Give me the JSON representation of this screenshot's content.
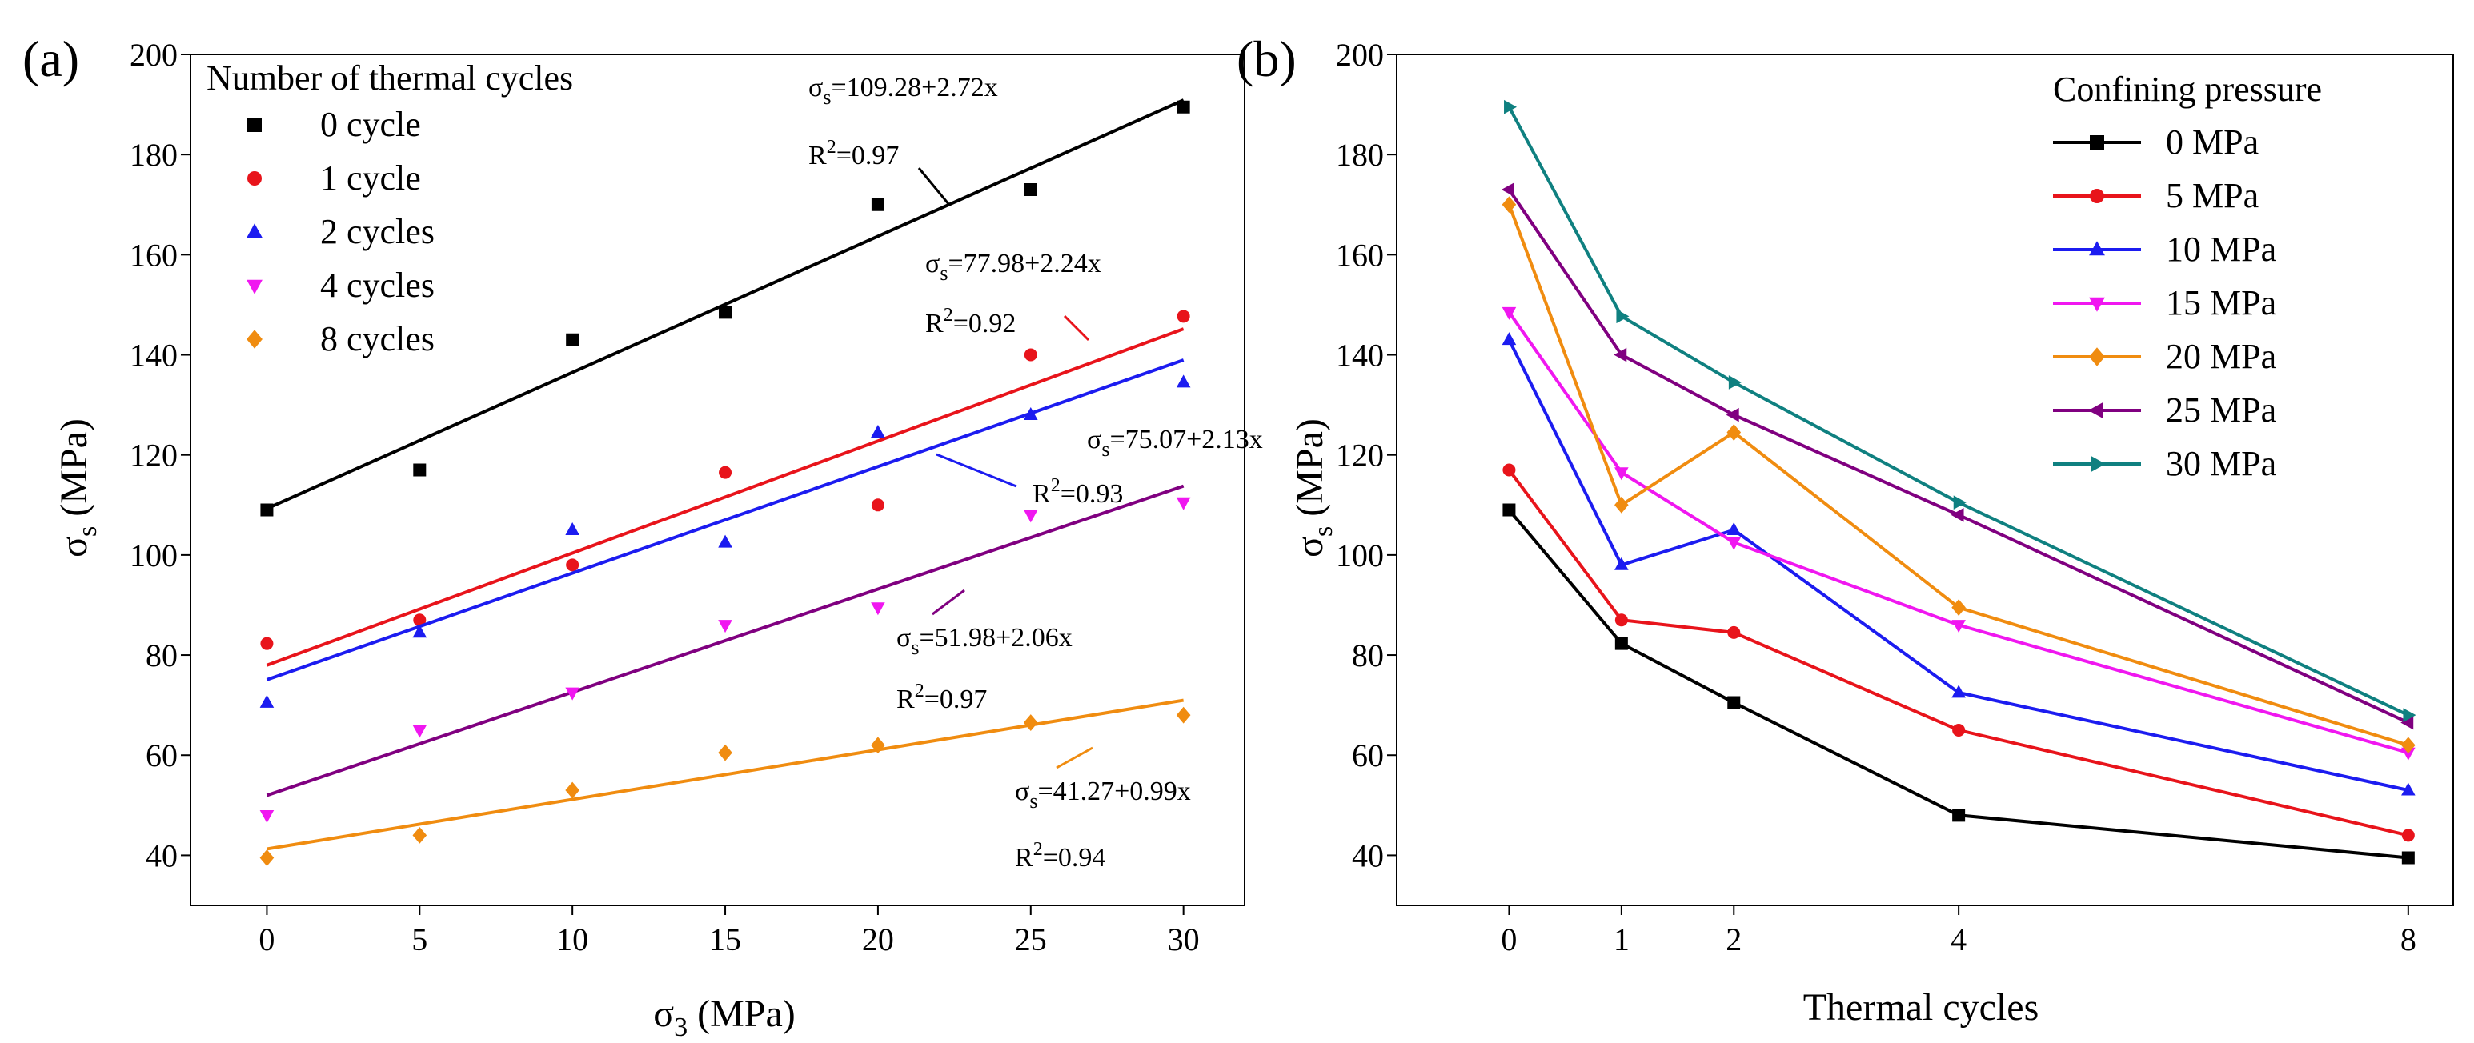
{
  "chart_data": [
    {
      "panel_label": "(a)",
      "type": "scatter",
      "xlabel_main": "σ",
      "xlabel_sub": "3",
      "xlabel_unit": " (MPa)",
      "ylabel_main": "σ",
      "ylabel_sub": "s",
      "ylabel_unit": " (MPa)",
      "xlim": [
        -2.5,
        32
      ],
      "ylim": [
        30,
        200
      ],
      "xticks": [
        0,
        5,
        10,
        15,
        20,
        25,
        30
      ],
      "yticks": [
        40,
        60,
        80,
        100,
        120,
        140,
        160,
        180,
        200
      ],
      "legend_title": "Number of thermal cycles",
      "legend_position": "top-left",
      "series": [
        {
          "name": "0 cycle",
          "color": "#000000",
          "marker": "square",
          "x": [
            0,
            5,
            10,
            15,
            20,
            25,
            30
          ],
          "values": [
            109,
            117,
            143,
            148.5,
            170,
            173,
            189.5
          ],
          "fit": {
            "intercept": 109.28,
            "slope": 2.72
          },
          "equation_prefix": "σ",
          "equation_sub": "s",
          "equation_rest": "=109.28+2.72x",
          "r2_prefix": "R",
          "r2_sup": "2",
          "r2_rest": "=0.97"
        },
        {
          "name": "1 cycle",
          "color": "#e8141b",
          "marker": "circle",
          "x": [
            0,
            5,
            10,
            15,
            20,
            25,
            30
          ],
          "values": [
            82.3,
            87,
            98,
            116.5,
            110,
            140,
            147.7
          ],
          "fit": {
            "intercept": 77.98,
            "slope": 2.24
          },
          "equation_prefix": "σ",
          "equation_sub": "s",
          "equation_rest": "=77.98+2.24x",
          "r2_prefix": "R",
          "r2_sup": "2",
          "r2_rest": "=0.92"
        },
        {
          "name": "2 cycles",
          "color": "#1c1cf0",
          "marker": "triangle-up",
          "x": [
            0,
            5,
            10,
            15,
            20,
            25,
            30
          ],
          "values": [
            70.5,
            84.5,
            105,
            102.5,
            124.5,
            128,
            134.5
          ],
          "fit": {
            "intercept": 75.07,
            "slope": 2.13
          },
          "equation_prefix": "σ",
          "equation_sub": "s",
          "equation_rest": "=75.07+2.13x",
          "r2_prefix": "R",
          "r2_sup": "2",
          "r2_rest": "=0.93"
        },
        {
          "name": "4 cycles",
          "color": "#f017f0",
          "marker": "triangle-down",
          "x": [
            0,
            5,
            10,
            15,
            20,
            25,
            30
          ],
          "values": [
            48,
            65,
            72.5,
            86,
            89.5,
            108,
            110.5
          ],
          "fit": {
            "intercept": 51.98,
            "slope": 2.06
          },
          "equation_prefix": "σ",
          "equation_sub": "s",
          "equation_rest": "=51.98+2.06x",
          "r2_prefix": "R",
          "r2_sup": "2",
          "r2_rest": "=0.97"
        },
        {
          "name": "8 cycles",
          "color": "#f08c10",
          "marker": "diamond",
          "x": [
            0,
            5,
            10,
            15,
            20,
            25,
            30
          ],
          "values": [
            39.5,
            44,
            53,
            60.5,
            62,
            66.5,
            68
          ],
          "fit": {
            "intercept": 41.27,
            "slope": 0.99
          },
          "equation_prefix": "σ",
          "equation_sub": "s",
          "equation_rest": "=41.27+0.99x",
          "r2_prefix": "R",
          "r2_sup": "2",
          "r2_rest": "=0.94"
        }
      ],
      "fit_line_colors": [
        "#000000",
        "#e8141b",
        "#1c1cf0",
        "#800080",
        "#f08c10"
      ]
    },
    {
      "panel_label": "(b)",
      "type": "line",
      "xlabel": "Thermal cycles",
      "ylabel_main": "σ",
      "ylabel_sub": "s",
      "ylabel_unit": " (MPa)",
      "xlim": [
        -1,
        8.4
      ],
      "ylim": [
        30,
        200
      ],
      "xticks": [
        0,
        1,
        2,
        4,
        8
      ],
      "yticks": [
        40,
        60,
        80,
        100,
        120,
        140,
        160,
        180,
        200
      ],
      "x": [
        0,
        1,
        2,
        4,
        8
      ],
      "legend_title": "Confining pressure",
      "legend_position": "top-right",
      "series": [
        {
          "name": "0 MPa",
          "color": "#000000",
          "marker": "square",
          "values": [
            109,
            82.3,
            70.5,
            48,
            39.5
          ]
        },
        {
          "name": "5 MPa",
          "color": "#e8141b",
          "marker": "circle",
          "values": [
            117,
            87,
            84.5,
            65,
            44
          ]
        },
        {
          "name": "10 MPa",
          "color": "#1c1cf0",
          "marker": "triangle-up",
          "values": [
            143,
            98,
            105,
            72.5,
            53
          ]
        },
        {
          "name": "15 MPa",
          "color": "#f017f0",
          "marker": "triangle-down",
          "values": [
            148.5,
            116.5,
            102.5,
            86,
            60.5
          ]
        },
        {
          "name": "20 MPa",
          "color": "#f08c10",
          "marker": "diamond",
          "values": [
            170,
            110,
            124.5,
            89.5,
            62
          ]
        },
        {
          "name": "25 MPa",
          "color": "#800080",
          "marker": "triangle-left",
          "values": [
            173,
            140,
            128,
            108,
            66.5
          ]
        },
        {
          "name": "30 MPa",
          "color": "#0f8080",
          "marker": "triangle-right",
          "values": [
            189.5,
            147.7,
            134.5,
            110.5,
            68
          ]
        }
      ]
    }
  ]
}
